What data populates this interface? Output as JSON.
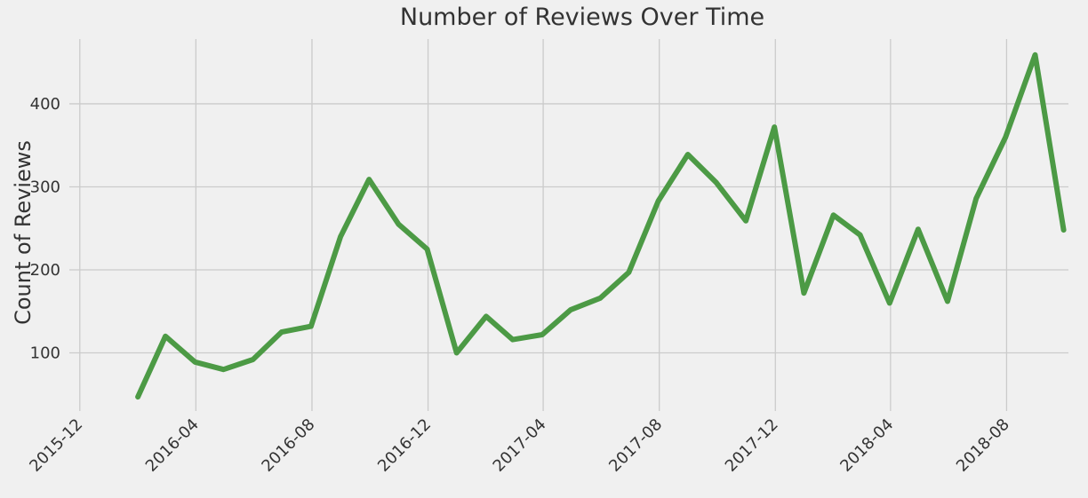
{
  "chart_data": {
    "type": "line",
    "title": "Number of Reviews Over Time",
    "xlabel": "",
    "ylabel": "Count of Reviews",
    "x": [
      "2016-01",
      "2016-02",
      "2016-03",
      "2016-04",
      "2016-05",
      "2016-06",
      "2016-07",
      "2016-08",
      "2016-09",
      "2016-10",
      "2016-11",
      "2016-12",
      "2017-01",
      "2017-02",
      "2017-03",
      "2017-04",
      "2017-05",
      "2017-06",
      "2017-07",
      "2017-08",
      "2017-09",
      "2017-10",
      "2017-11",
      "2017-12",
      "2018-01",
      "2018-02",
      "2018-03",
      "2018-04",
      "2018-05",
      "2018-06",
      "2018-07",
      "2018-08",
      "2018-09"
    ],
    "series": [
      {
        "values": [
          47,
          120,
          89,
          80,
          92,
          125,
          132,
          240,
          309,
          255,
          225,
          100,
          144,
          116,
          122,
          152,
          166,
          197,
          283,
          339,
          305,
          259,
          372,
          172,
          266,
          242,
          160,
          249,
          162,
          286,
          360,
          459,
          248
        ]
      }
    ],
    "x_tick_labels": [
      "2015-12",
      "2016-04",
      "2016-08",
      "2016-12",
      "2017-04",
      "2017-08",
      "2017-12",
      "2018-04",
      "2018-08"
    ],
    "y_ticks": [
      100,
      200,
      300,
      400
    ],
    "xlim": [
      "2015-11-20",
      "2018-10-05"
    ],
    "ylim": [
      30,
      478
    ],
    "grid": true,
    "legend": "none",
    "line_color": "#4c9a45",
    "background_color": "#f0f0f0",
    "grid_color": "#cbcbcb"
  }
}
